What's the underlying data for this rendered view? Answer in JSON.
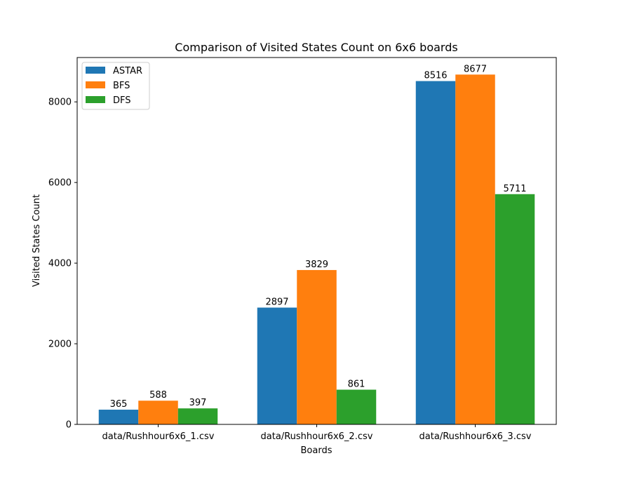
{
  "chart_data": {
    "type": "bar",
    "title": "Comparison of Visited States Count on 6x6 boards",
    "xlabel": "Boards",
    "ylabel": "Visited States Count",
    "categories": [
      "data/Rushhour6x6_1.csv",
      "data/Rushhour6x6_2.csv",
      "data/Rushhour6x6_3.csv"
    ],
    "series": [
      {
        "name": "ASTAR",
        "color": "#1f77b4",
        "values": [
          365,
          2897,
          8516
        ]
      },
      {
        "name": "BFS",
        "color": "#ff7f0e",
        "values": [
          588,
          3829,
          8677
        ]
      },
      {
        "name": "DFS",
        "color": "#2ca02c",
        "values": [
          397,
          861,
          5711
        ]
      }
    ],
    "ylim": [
      0,
      9100
    ],
    "yticks": [
      0,
      2000,
      4000,
      6000,
      8000
    ],
    "legend": "top-left",
    "grid": false
  }
}
